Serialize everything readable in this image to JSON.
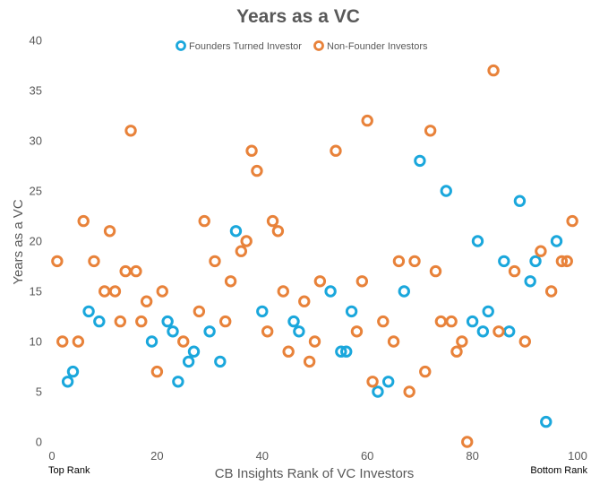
{
  "chart_data": {
    "type": "scatter",
    "title": "Years as a VC",
    "xlabel": "CB Insights Rank of VC Investors",
    "ylabel": "Years as a VC",
    "xlim": [
      0,
      100
    ],
    "ylim": [
      0,
      40
    ],
    "x_ticks": [
      0,
      20,
      40,
      60,
      80,
      100
    ],
    "y_ticks": [
      0,
      5,
      10,
      15,
      20,
      25,
      30,
      35,
      40
    ],
    "x_rank_labels": {
      "left": "Top Rank",
      "right": "Bottom Rank"
    },
    "legend_position": "top",
    "grid": false,
    "series": [
      {
        "name": "Founders Turned Investor",
        "color": "#1AA7DC",
        "points": [
          [
            3,
            6
          ],
          [
            4,
            7
          ],
          [
            7,
            13
          ],
          [
            9,
            12
          ],
          [
            19,
            10
          ],
          [
            22,
            12
          ],
          [
            23,
            11
          ],
          [
            24,
            6
          ],
          [
            26,
            8
          ],
          [
            27,
            9
          ],
          [
            30,
            11
          ],
          [
            32,
            8
          ],
          [
            35,
            21
          ],
          [
            40,
            13
          ],
          [
            46,
            12
          ],
          [
            47,
            11
          ],
          [
            53,
            15
          ],
          [
            55,
            9
          ],
          [
            56,
            9
          ],
          [
            57,
            13
          ],
          [
            62,
            5
          ],
          [
            64,
            6
          ],
          [
            67,
            15
          ],
          [
            70,
            28
          ],
          [
            75,
            25
          ],
          [
            80,
            12
          ],
          [
            81,
            20
          ],
          [
            82,
            11
          ],
          [
            83,
            13
          ],
          [
            86,
            18
          ],
          [
            87,
            11
          ],
          [
            89,
            24
          ],
          [
            91,
            16
          ],
          [
            92,
            18
          ],
          [
            94,
            2
          ],
          [
            96,
            20
          ]
        ]
      },
      {
        "name": "Non-Founder Investors",
        "color": "#E8823A",
        "points": [
          [
            1,
            18
          ],
          [
            2,
            10
          ],
          [
            5,
            10
          ],
          [
            6,
            22
          ],
          [
            8,
            18
          ],
          [
            10,
            15
          ],
          [
            11,
            21
          ],
          [
            12,
            15
          ],
          [
            13,
            12
          ],
          [
            14,
            17
          ],
          [
            15,
            31
          ],
          [
            16,
            17
          ],
          [
            17,
            12
          ],
          [
            18,
            14
          ],
          [
            20,
            7
          ],
          [
            21,
            15
          ],
          [
            25,
            10
          ],
          [
            28,
            13
          ],
          [
            29,
            22
          ],
          [
            31,
            18
          ],
          [
            33,
            12
          ],
          [
            34,
            16
          ],
          [
            36,
            19
          ],
          [
            37,
            20
          ],
          [
            38,
            29
          ],
          [
            39,
            27
          ],
          [
            41,
            11
          ],
          [
            42,
            22
          ],
          [
            43,
            21
          ],
          [
            44,
            15
          ],
          [
            45,
            9
          ],
          [
            48,
            14
          ],
          [
            49,
            8
          ],
          [
            50,
            10
          ],
          [
            51,
            16
          ],
          [
            54,
            29
          ],
          [
            58,
            11
          ],
          [
            59,
            16
          ],
          [
            60,
            32
          ],
          [
            61,
            6
          ],
          [
            63,
            12
          ],
          [
            65,
            10
          ],
          [
            66,
            18
          ],
          [
            68,
            5
          ],
          [
            69,
            18
          ],
          [
            71,
            7
          ],
          [
            72,
            31
          ],
          [
            73,
            17
          ],
          [
            74,
            12
          ],
          [
            76,
            12
          ],
          [
            77,
            9
          ],
          [
            78,
            10
          ],
          [
            79,
            0
          ],
          [
            84,
            37
          ],
          [
            85,
            11
          ],
          [
            88,
            17
          ],
          [
            90,
            10
          ],
          [
            93,
            19
          ],
          [
            95,
            15
          ],
          [
            97,
            18
          ],
          [
            98,
            18
          ],
          [
            99,
            22
          ]
        ]
      }
    ]
  }
}
